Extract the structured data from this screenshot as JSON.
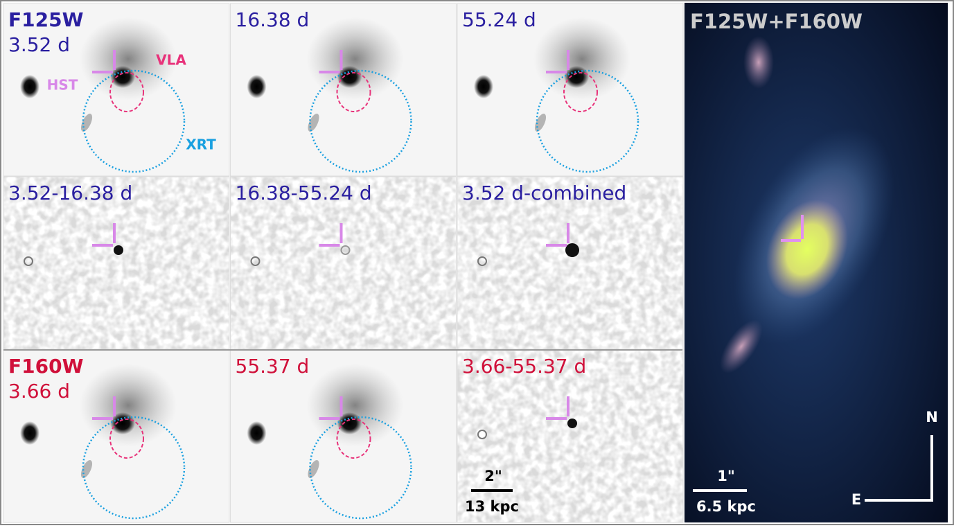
{
  "panels": [
    {
      "lines": [
        "F125W",
        "3.52 d"
      ],
      "color": "#2a1fa0"
    },
    {
      "lines": [
        "16.38 d"
      ],
      "color": "#2a1fa0"
    },
    {
      "lines": [
        "55.24 d"
      ],
      "color": "#2a1fa0"
    },
    {
      "lines": [
        "3.52-16.38 d"
      ],
      "color": "#2a1fa0"
    },
    {
      "lines": [
        "16.38-55.24 d"
      ],
      "color": "#2a1fa0"
    },
    {
      "lines": [
        "3.52 d-combined"
      ],
      "color": "#2a1fa0"
    },
    {
      "lines": [
        "F160W",
        "3.66 d"
      ],
      "color": "#d0103a"
    },
    {
      "lines": [
        "55.37 d"
      ],
      "color": "#d0103a"
    },
    {
      "lines": [
        "3.66-55.37 d"
      ],
      "color": "#d0103a"
    }
  ],
  "annotations": {
    "hst": "HST",
    "vla": "VLA",
    "xrt": "XRT"
  },
  "scale_left": {
    "angle": "2\"",
    "distance": "13 kpc"
  },
  "color_panel": {
    "title": "F125W+F160W",
    "angle": "1\"",
    "distance": "6.5 kpc",
    "north": "N",
    "east": "E"
  }
}
